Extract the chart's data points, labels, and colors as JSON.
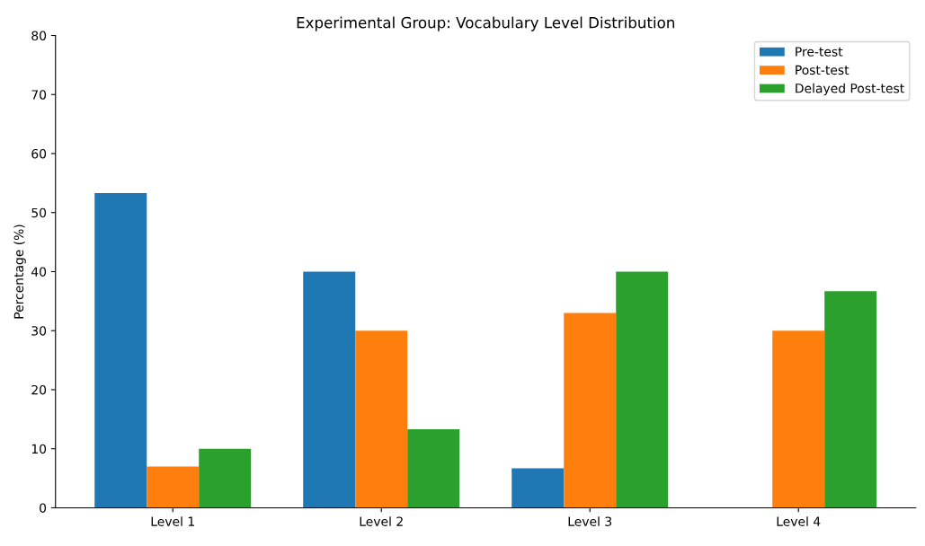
{
  "chart_data": {
    "type": "bar",
    "title": "Experimental Group: Vocabulary Level Distribution",
    "ylabel": "Percentage (%)",
    "categories": [
      "Level 1",
      "Level 2",
      "Level 3",
      "Level 4"
    ],
    "series": [
      {
        "name": "Pre-test",
        "color": "#1f77b4",
        "values": [
          53.3,
          40,
          6.7,
          0
        ]
      },
      {
        "name": "Post-test",
        "color": "#ff7f0e",
        "values": [
          7,
          30,
          33,
          30
        ]
      },
      {
        "name": "Delayed Post-test",
        "color": "#2ca02c",
        "values": [
          10,
          13.3,
          40,
          36.7
        ]
      }
    ],
    "ylim": [
      0,
      80
    ],
    "yticks": [
      0,
      10,
      20,
      30,
      40,
      50,
      60,
      70,
      80
    ],
    "legend": "top right",
    "grid": false
  }
}
